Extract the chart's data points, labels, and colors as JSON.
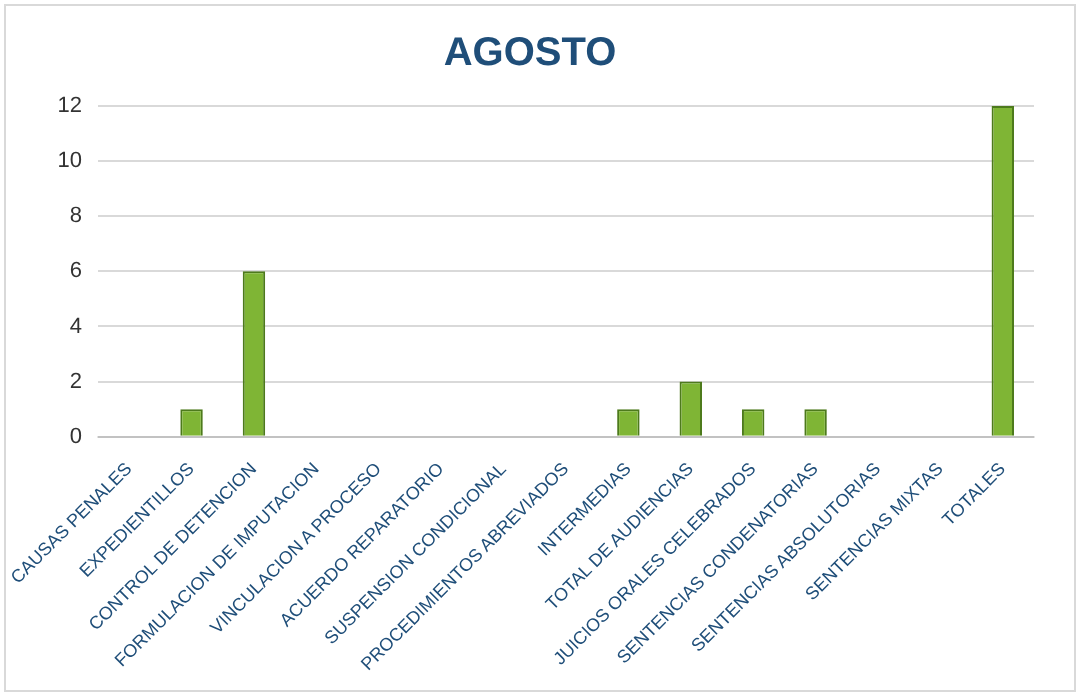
{
  "chart_data": {
    "type": "bar",
    "title": "AGOSTO",
    "categories": [
      "CAUSAS PENALES",
      "EXPEDIENTILLOS",
      "CONTROL DE DETENCION",
      "FORMULACION DE IMPUTACION",
      "VINCULACION A PROCESO",
      "ACUERDO REPARATORIO",
      "SUSPENSION CONDICIONAL",
      "PROCEDIMIENTOS ABREVIADOS",
      "INTERMEDIAS",
      "TOTAL DE AUDIENCIAS",
      "JUICIOS ORALES CELEBRADOS",
      "SENTENCIAS CONDENATORIAS",
      "SENTENCIAS ABSOLUTORIAS",
      "SENTENCIAS MIXTAS",
      "TOTALES"
    ],
    "values": [
      0,
      1,
      6,
      0,
      0,
      0,
      0,
      0,
      1,
      2,
      1,
      1,
      0,
      0,
      12
    ],
    "color": "#7fb535",
    "ylim": [
      0,
      12
    ],
    "yticks": [
      0,
      2,
      4,
      6,
      8,
      10,
      12
    ],
    "grid": "y",
    "legend": false
  }
}
